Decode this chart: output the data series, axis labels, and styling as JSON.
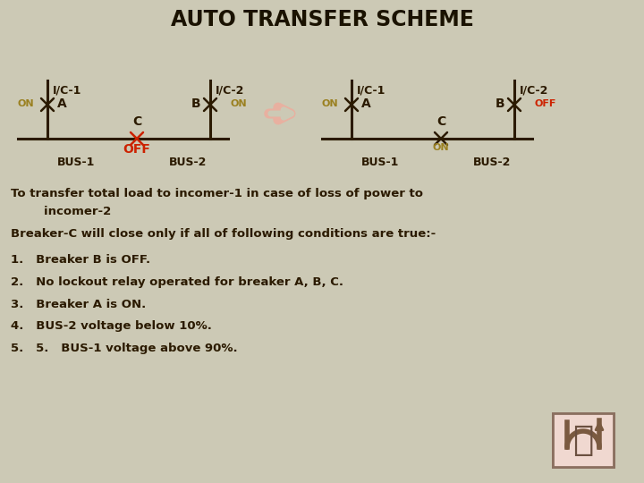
{
  "title": "AUTO TRANSFER SCHEME",
  "bg_color": "#ccc9b5",
  "title_color": "#1a1200",
  "dark_color": "#2b1a00",
  "on_color": "#9a8020",
  "off_color": "#cc2200",
  "line_color": "#2b1a00",
  "text_color": "#2b1a00",
  "body_lines": [
    "To transfer total load to incomer-1 in case of loss of power to",
    "        incomer-2",
    "Breaker-C will close only if all of following conditions are true:-",
    "1.   Breaker B is OFF.",
    "2.   No lockout relay operated for breaker A, B, C.",
    "3.   Breaker A is ON.",
    "4.   BUS-2 voltage below 10%.",
    "5.   5.   BUS-1 voltage above 90%."
  ]
}
